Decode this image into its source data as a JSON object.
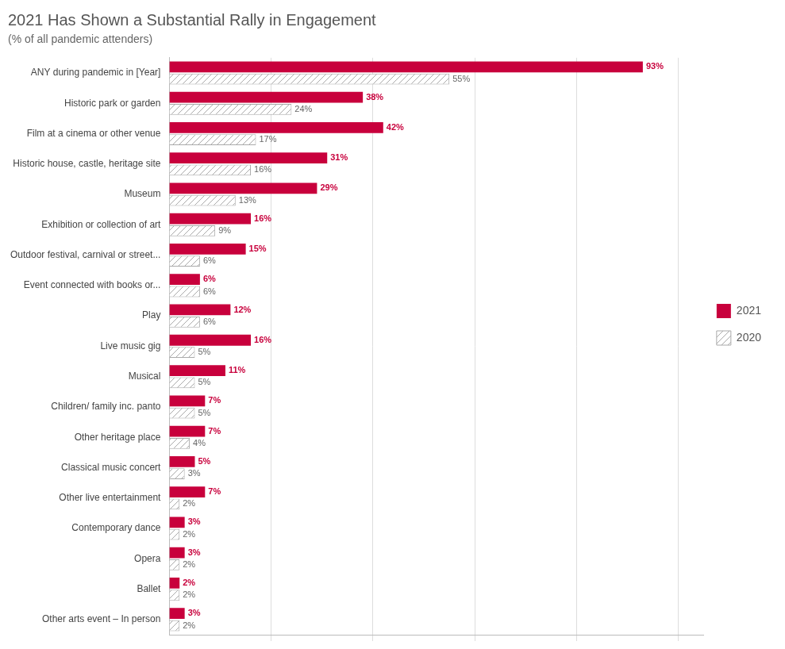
{
  "chart_data": {
    "type": "bar",
    "orientation": "horizontal",
    "title": "2021 Has Shown a Substantial Rally in Engagement",
    "subtitle": "(% of all pandemic attenders)",
    "categories": [
      "Other arts event – In person",
      "Ballet",
      "Opera",
      "Contemporary dance",
      "Other live entertainment",
      "Classical music concert",
      "Other heritage place",
      "Children/ family inc. panto",
      "Musical",
      "Live music gig",
      "Play",
      "Event connected with books or...",
      "Outdoor festival, carnival or street...",
      "Exhibition or collection of art",
      "Museum",
      "Historic house, castle, heritage site",
      "Film at a cinema or other venue",
      "Historic park or garden",
      "ANY during pandemic in [Year]"
    ],
    "series": [
      {
        "name": "2021",
        "color": "#c8003c",
        "values": [
          3,
          2,
          3,
          3,
          7,
          5,
          7,
          7,
          11,
          16,
          12,
          6,
          15,
          16,
          29,
          31,
          42,
          38,
          93
        ],
        "value_labels": [
          "3%",
          "2%",
          "3%",
          "3%",
          "7%",
          "5%",
          "7%",
          "7%",
          "11%",
          "16%",
          "12%",
          "6%",
          "15%",
          "16%",
          "29%",
          "31%",
          "42%",
          "38%",
          "93%"
        ]
      },
      {
        "name": "2020",
        "color": "#ffffff",
        "values": [
          2,
          2,
          2,
          2,
          2,
          3,
          4,
          5,
          5,
          5,
          6,
          6,
          6,
          9,
          13,
          16,
          17,
          24,
          55
        ],
        "value_labels": [
          "2%",
          "2%",
          "2%",
          "2%",
          "2%",
          "3%",
          "4%",
          "5%",
          "5%",
          "5%",
          "6%",
          "6%",
          "6%",
          "9%",
          "13%",
          "16%",
          "17%",
          "24%",
          "55%"
        ]
      }
    ],
    "xlim": [
      0,
      105
    ],
    "xticks": [
      20,
      40,
      60,
      80,
      100
    ],
    "grid": true,
    "legend": "right",
    "data_labels": true,
    "tick_labels": "y"
  }
}
